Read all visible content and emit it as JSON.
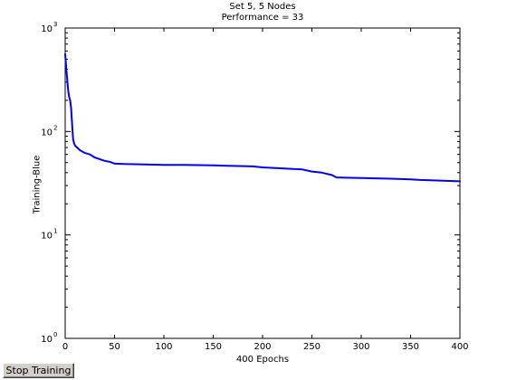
{
  "chart_data": {
    "type": "line",
    "title": "Set 5, 5 Nodes",
    "subtitle": "Performance = 33",
    "xlabel": "400 Epochs",
    "ylabel": "Training-Blue",
    "xlim": [
      0,
      400
    ],
    "ylim": [
      1,
      1000
    ],
    "yscale": "log",
    "grid": false,
    "x_ticks": [
      0,
      50,
      100,
      150,
      200,
      250,
      300,
      350,
      400
    ],
    "x_tick_labels": [
      "0",
      "50",
      "100",
      "150",
      "200",
      "250",
      "300",
      "350",
      "400"
    ],
    "y_ticks": [
      1,
      10,
      100,
      1000
    ],
    "y_tick_labels": [
      {
        "base": "10",
        "exp": "0"
      },
      {
        "base": "10",
        "exp": "1"
      },
      {
        "base": "10",
        "exp": "2"
      },
      {
        "base": "10",
        "exp": "3"
      }
    ],
    "series": [
      {
        "color": "#0000ff",
        "x": [
          0,
          1,
          2,
          3,
          4,
          5,
          6,
          7,
          8,
          9,
          10,
          12,
          15,
          20,
          25,
          30,
          35,
          40,
          45,
          50,
          60,
          80,
          100,
          120,
          150,
          170,
          190,
          200,
          220,
          240,
          250,
          260,
          270,
          275,
          300,
          330,
          350,
          360,
          380,
          400
        ],
        "y": [
          560,
          420,
          320,
          250,
          215,
          200,
          170,
          120,
          85,
          77,
          73,
          70,
          66,
          62,
          60,
          56,
          54,
          52,
          51,
          49,
          48.5,
          48,
          47.5,
          47.5,
          47,
          46.5,
          46,
          45,
          44,
          43,
          41,
          40,
          38,
          36,
          35.5,
          35,
          34.5,
          34,
          33.5,
          33
        ]
      }
    ]
  },
  "controls": {
    "stop_button_label": "Stop Training"
  }
}
